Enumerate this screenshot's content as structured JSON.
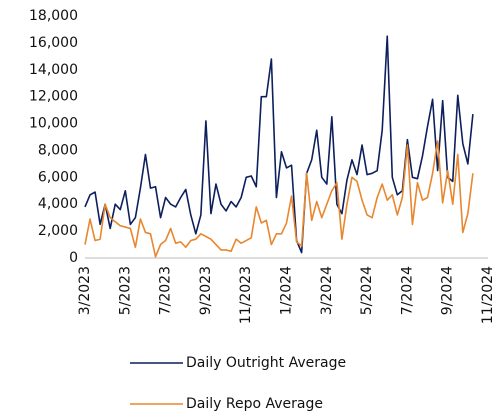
{
  "chart_data": {
    "type": "line",
    "categories": [
      "3/2023",
      null,
      null,
      null,
      null,
      null,
      null,
      null,
      "5/2023",
      null,
      null,
      null,
      null,
      null,
      null,
      null,
      "7/2023",
      null,
      null,
      null,
      null,
      null,
      null,
      null,
      "9/2023",
      null,
      null,
      null,
      null,
      null,
      null,
      null,
      "11/2023",
      null,
      null,
      null,
      null,
      null,
      null,
      null,
      "1/2024",
      null,
      null,
      null,
      null,
      null,
      null,
      null,
      "3/2024",
      null,
      null,
      null,
      null,
      null,
      null,
      null,
      "5/2024",
      null,
      null,
      null,
      null,
      null,
      null,
      null,
      "7/2024",
      null,
      null,
      null,
      null,
      null,
      null,
      null,
      "9/2024",
      null,
      null,
      null,
      null,
      null,
      null,
      null,
      "11/2024"
    ],
    "series": [
      {
        "name": "Daily Outright Average",
        "color": "#0d1f5c",
        "values": [
          3800,
          4700,
          4900,
          2500,
          4000,
          2200,
          4000,
          3600,
          5000,
          2500,
          3000,
          5200,
          7700,
          5200,
          5300,
          3000,
          4500,
          4000,
          3800,
          4500,
          5100,
          3200,
          1800,
          3200,
          10200,
          3300,
          5500,
          4000,
          3500,
          4200,
          3800,
          4500,
          6000,
          6100,
          5300,
          12000,
          12000,
          14800,
          4500,
          7900,
          6700,
          6900,
          1300,
          400,
          6300,
          7300,
          9500,
          6000,
          5500,
          10500,
          4000,
          3300,
          5800,
          7300,
          6200,
          8400,
          6200,
          6300,
          6500,
          9500,
          16500,
          6000,
          4700,
          5000,
          8800,
          6000,
          5900,
          7600,
          9800,
          11800,
          6500,
          11700,
          6000,
          5700,
          12100,
          8500,
          7000,
          10700,
          null,
          null,
          null
        ]
      },
      {
        "name": "Daily Repo Average",
        "color": "#e8872e",
        "values": [
          1000,
          2900,
          1300,
          1400,
          4000,
          3000,
          2700,
          2400,
          2300,
          2200,
          800,
          2900,
          1900,
          1800,
          100,
          1000,
          1300,
          2200,
          1100,
          1200,
          800,
          1300,
          1400,
          1800,
          1600,
          1400,
          1000,
          600,
          600,
          500,
          1400,
          1100,
          1300,
          1500,
          3800,
          2600,
          2800,
          1000,
          1800,
          1800,
          2600,
          4600,
          1200,
          900,
          6300,
          2800,
          4200,
          3000,
          4000,
          5000,
          5600,
          1400,
          4000,
          6000,
          5700,
          4300,
          3200,
          3000,
          4500,
          5500,
          4300,
          4700,
          3200,
          4500,
          8400,
          2500,
          5600,
          4300,
          4500,
          6300,
          8700,
          4100,
          6500,
          4000,
          7700,
          1900,
          3300,
          6300,
          null,
          null,
          null
        ]
      }
    ],
    "ylim": [
      0,
      18000
    ],
    "yticks": [
      0,
      {
        "value": 2000,
        "label": "2,000"
      },
      {
        "value": 4000,
        "label": "4,000"
      },
      {
        "value": 6000,
        "label": "6,000"
      },
      {
        "value": 8000,
        "label": "8,000"
      },
      {
        "value": 10000,
        "label": "10,000"
      },
      {
        "value": 12000,
        "label": "12,000"
      },
      {
        "value": 14000,
        "label": "14,000"
      },
      {
        "value": 16000,
        "label": "16,000"
      },
      {
        "value": 18000,
        "label": "18,000"
      }
    ],
    "grid": false
  }
}
